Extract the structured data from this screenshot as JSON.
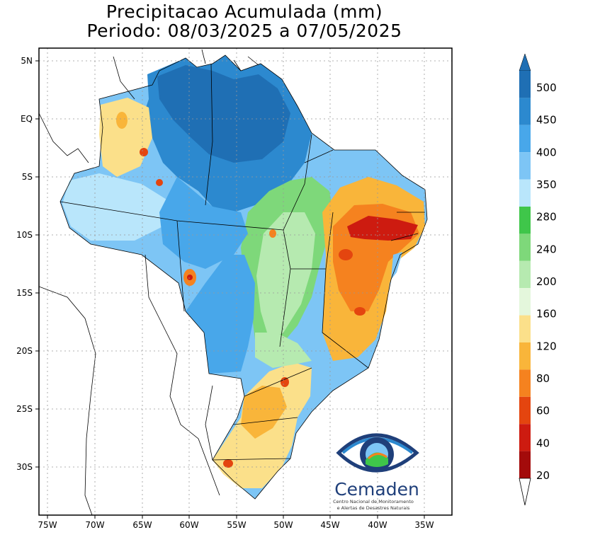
{
  "title": {
    "line1": "Precipitacao Acumulada (mm)",
    "line2": "Periodo: 08/03/2025 a 07/05/2025"
  },
  "map": {
    "lat_ticks": [
      "5N",
      "EQ",
      "5S",
      "10S",
      "15S",
      "20S",
      "25S",
      "30S"
    ],
    "lon_ticks": [
      "75W",
      "70W",
      "65W",
      "60W",
      "55W",
      "50W",
      "45W",
      "40W",
      "35W"
    ],
    "grid": true
  },
  "colorbar": {
    "labels": [
      "500",
      "450",
      "400",
      "350",
      "280",
      "240",
      "200",
      "160",
      "120",
      "80",
      "60",
      "40",
      "20"
    ],
    "colors": [
      "#1f6fb4",
      "#2c89cf",
      "#48a7ea",
      "#7dc5f5",
      "#b9e6fb",
      "#3fc64a",
      "#7ed87a",
      "#b6eab0",
      "#e4f7dc",
      "#fbe08a",
      "#f9b53a",
      "#f5821f",
      "#e4450f",
      "#cd1b10",
      "#a30b0b"
    ]
  },
  "logo": {
    "name": "Cemaden",
    "subtitle_line1": "Centro Nacional de Monitoramento",
    "subtitle_line2": "e Alertas de Desastres Naturais"
  }
}
